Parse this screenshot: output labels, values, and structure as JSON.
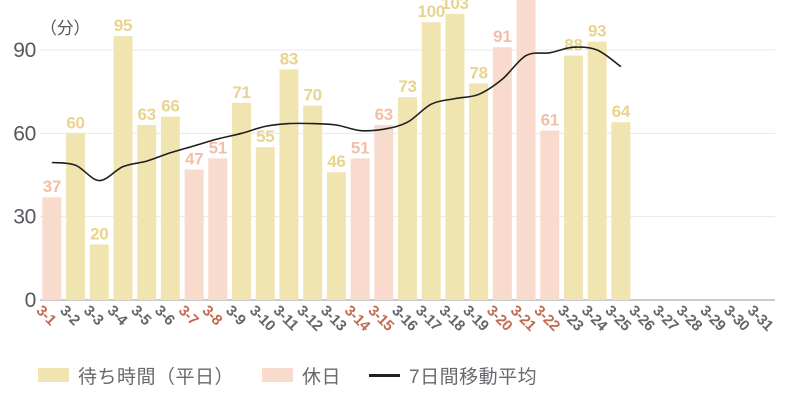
{
  "chart_data": {
    "type": "bar",
    "title": "",
    "ylabel": "（分）",
    "xlabel": "",
    "ylim": [
      0,
      108
    ],
    "yticks": [
      0,
      30,
      60,
      90
    ],
    "grid": true,
    "legend_position": "bottom",
    "categories": [
      "3-1",
      "3-2",
      "3-3",
      "3-4",
      "3-5",
      "3-6",
      "3-7",
      "3-8",
      "3-9",
      "3-10",
      "3-11",
      "3-12",
      "3-13",
      "3-14",
      "3-15",
      "3-16",
      "3-17",
      "3-18",
      "3-19",
      "3-20",
      "3-21",
      "3-22",
      "3-23",
      "3-24",
      "3-25",
      "3-26",
      "3-27",
      "3-28",
      "3-29",
      "3-30",
      "3-31"
    ],
    "holiday_categories": [
      "3-1",
      "3-7",
      "3-8",
      "3-14",
      "3-15",
      "3-20",
      "3-21",
      "3-22"
    ],
    "series": [
      {
        "name": "待ち時間（平日）",
        "type": "bar",
        "values": [
          null,
          60,
          20,
          95,
          63,
          66,
          null,
          null,
          71,
          55,
          83,
          70,
          46,
          null,
          null,
          73,
          100,
          103,
          78,
          null,
          null,
          null,
          88,
          93,
          64,
          null,
          null,
          null,
          null,
          null,
          null
        ]
      },
      {
        "name": "休日",
        "type": "bar",
        "values": [
          37,
          null,
          null,
          null,
          null,
          null,
          47,
          51,
          null,
          null,
          null,
          null,
          null,
          51,
          63,
          null,
          null,
          null,
          null,
          91,
          null,
          61,
          null,
          null,
          null,
          null,
          null,
          null,
          null,
          null,
          null
        ]
      },
      {
        "name": "7日間移動平均",
        "type": "line",
        "values": [
          49.5,
          48.5,
          43,
          48,
          50,
          53,
          55.5,
          58,
          60,
          62.5,
          63.5,
          63.5,
          63,
          61,
          61.5,
          64,
          70.5,
          72.5,
          74,
          79.5,
          88,
          89,
          91,
          90,
          84,
          null,
          null,
          null,
          null,
          null,
          null
        ]
      }
    ],
    "clipped_bar": {
      "category": "3-21",
      "series": "休日",
      "note": "bar extends above the top of the chart; its value label is not visible"
    }
  },
  "colors": {
    "weekday_bar": "#F0E5B1",
    "weekday_value_label": "#E8D48D",
    "holiday_bar": "#F8DBCC",
    "holiday_value_label": "#F2BFA9",
    "holiday_tick_label": "#C16B51",
    "tick_label": "#63666B",
    "y_tick_label": "#55575C",
    "gridline": "#E8E8E8",
    "axis_line": "#979797",
    "ma_line": "#1F1F1F"
  },
  "legend": {
    "items": [
      {
        "label": "待ち時間（平日）",
        "swatch": "weekday"
      },
      {
        "label": "休日",
        "swatch": "holiday"
      },
      {
        "label": "7日間移動平均",
        "swatch": "line"
      }
    ]
  }
}
